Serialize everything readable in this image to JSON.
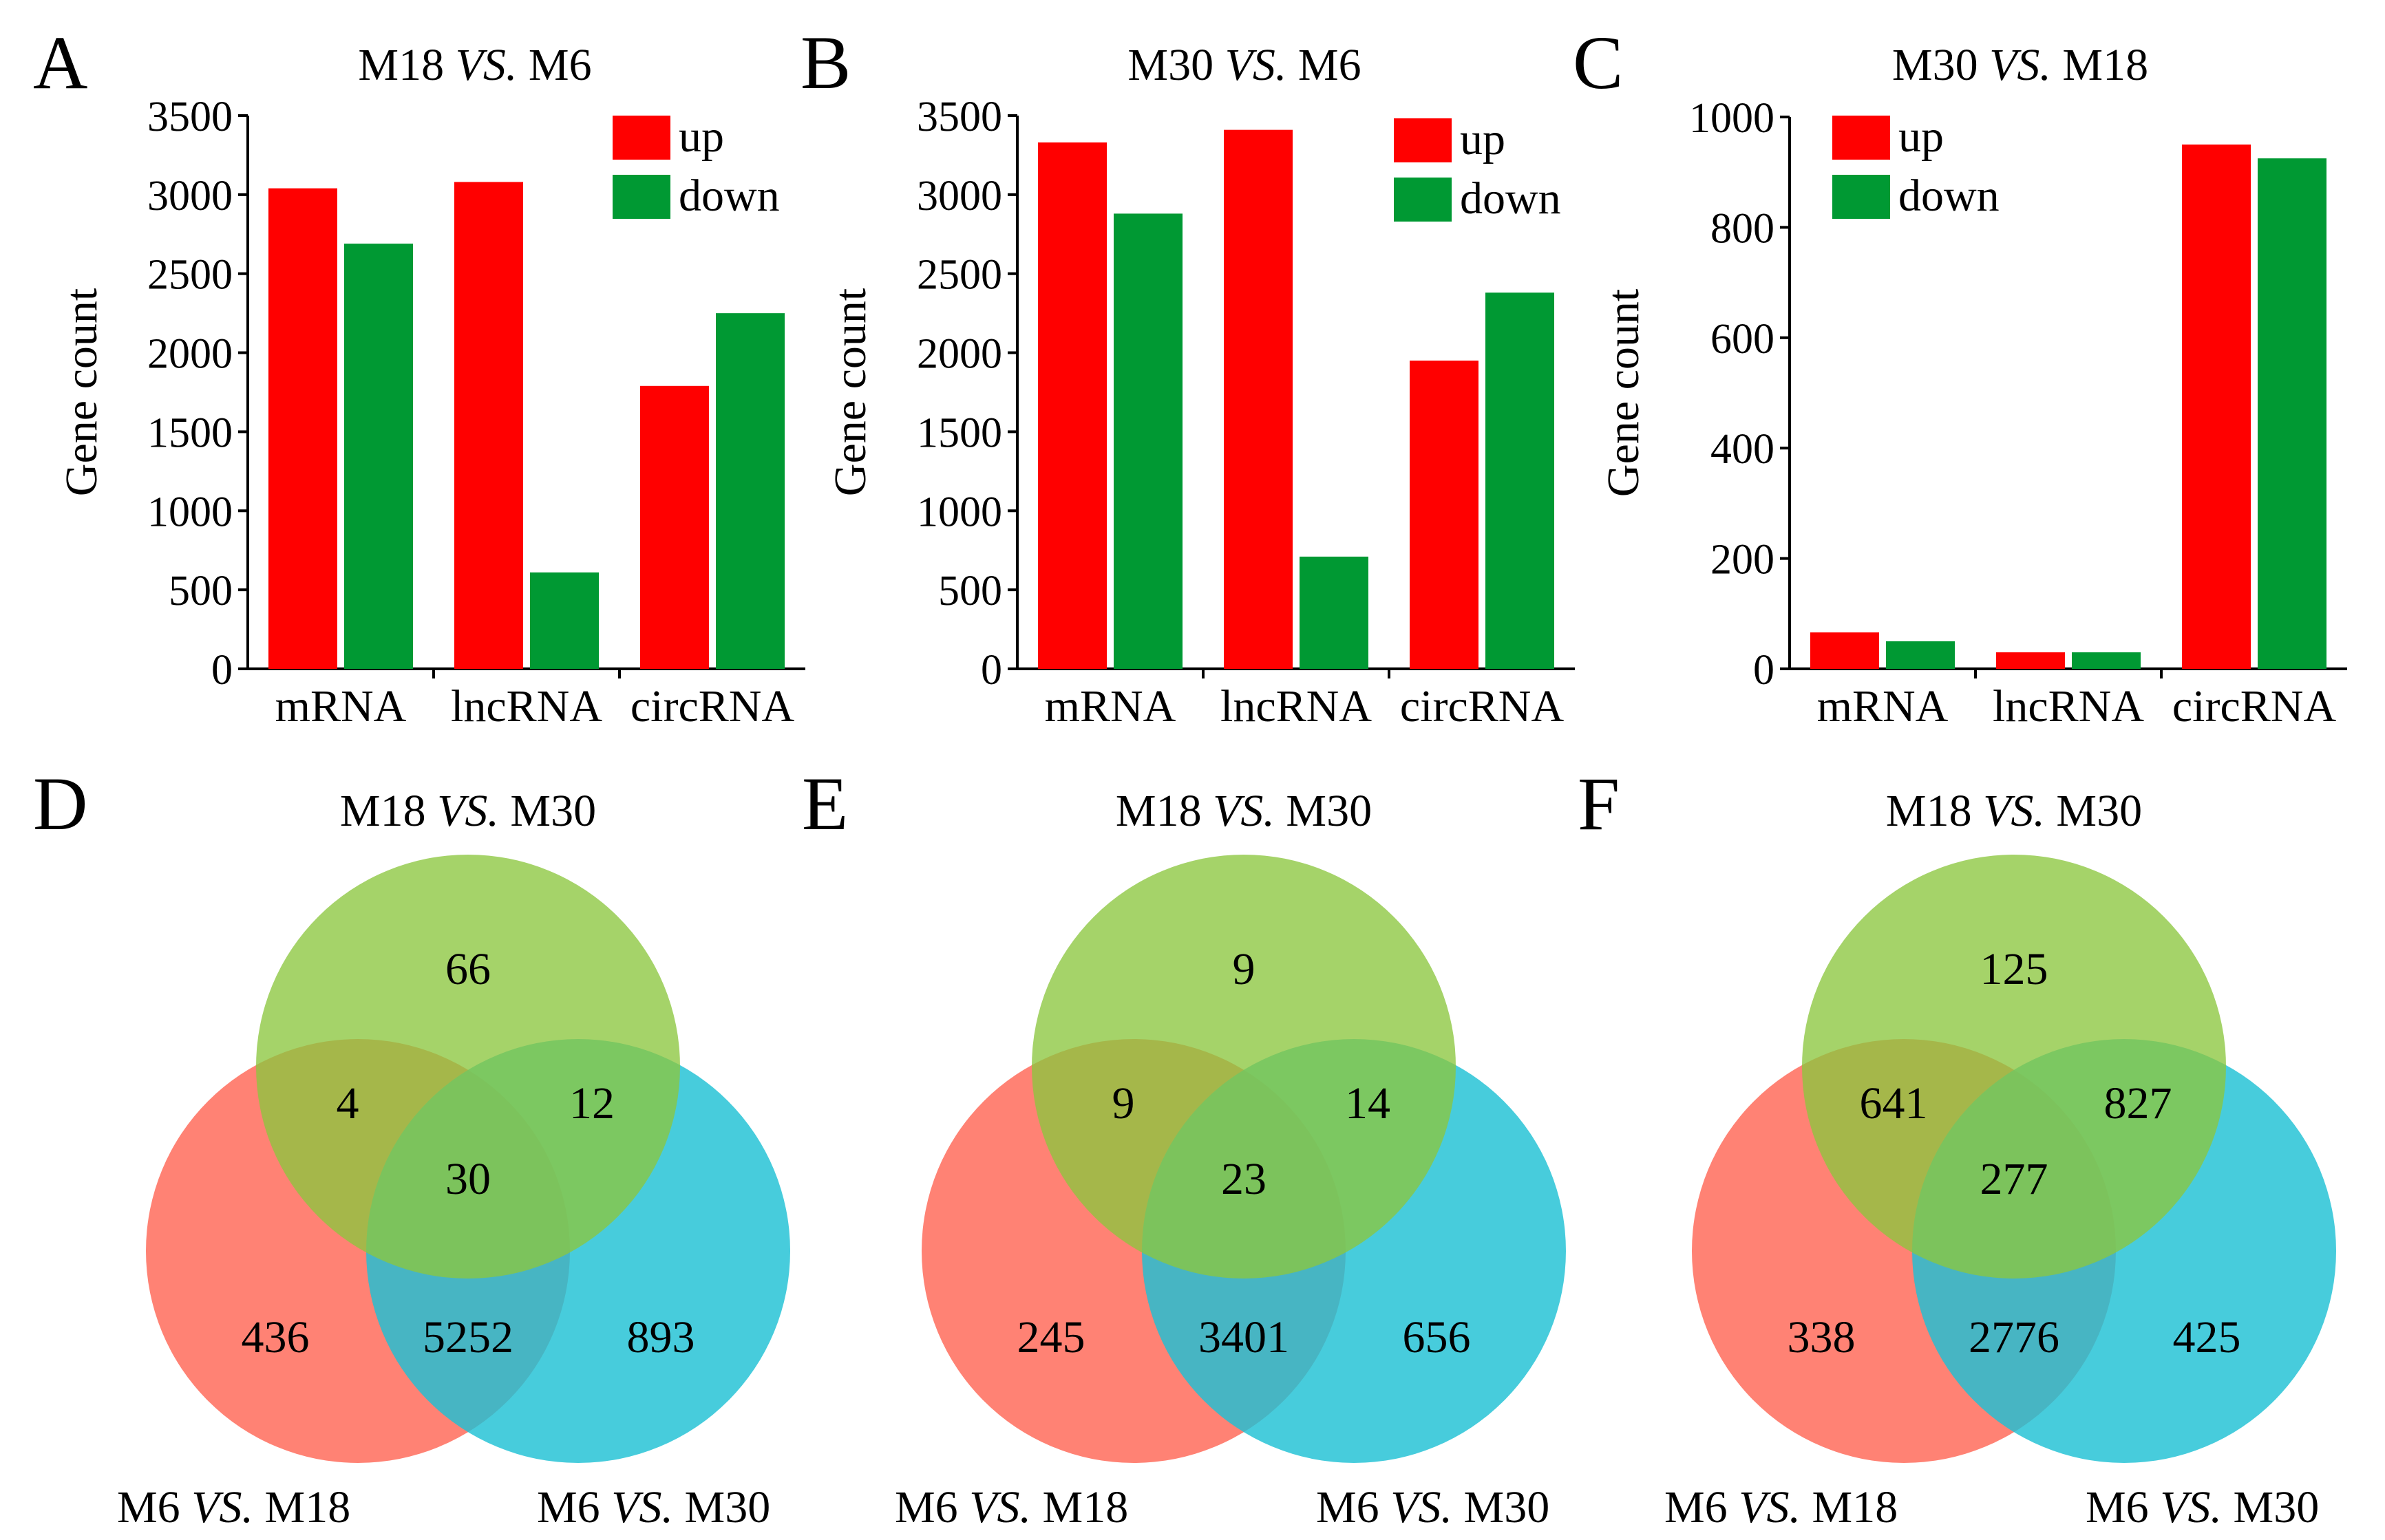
{
  "colors": {
    "up": "#ff0000",
    "down": "#009933"
  },
  "chart_data": [
    {
      "type": "bar",
      "panel_letter": "A",
      "title": {
        "prefix": "M18 ",
        "italic": "VS.",
        "suffix": " M6"
      },
      "ylabel": "Gene count",
      "categories": [
        "mRNA",
        "lncRNA",
        "circRNA"
      ],
      "ylim": [
        0,
        3500
      ],
      "yticks": [
        0,
        500,
        1000,
        1500,
        2000,
        2500,
        3000,
        3500
      ],
      "legend": {
        "placement": "top-right"
      },
      "series": [
        {
          "name": "up",
          "color": "#ff0000",
          "values": [
            3040,
            3080,
            1790
          ]
        },
        {
          "name": "down",
          "color": "#009933",
          "values": [
            2690,
            610,
            2250
          ]
        }
      ]
    },
    {
      "type": "bar",
      "panel_letter": "B",
      "title": {
        "prefix": "M30 ",
        "italic": "VS.",
        "suffix": " M6"
      },
      "ylabel": "Gene count",
      "categories": [
        "mRNA",
        "lncRNA",
        "circRNA"
      ],
      "ylim": [
        0,
        3500
      ],
      "yticks": [
        0,
        500,
        1000,
        1500,
        2000,
        2500,
        3000,
        3500
      ],
      "legend": {
        "placement": "top-right"
      },
      "series": [
        {
          "name": "up",
          "color": "#ff0000",
          "values": [
            3330,
            3410,
            1950
          ]
        },
        {
          "name": "down",
          "color": "#009933",
          "values": [
            2880,
            710,
            2380
          ]
        }
      ]
    },
    {
      "type": "bar",
      "panel_letter": "C",
      "title": {
        "prefix": "M30 ",
        "italic": "VS.",
        "suffix": " M18"
      },
      "ylabel": "Gene count",
      "categories": [
        "mRNA",
        "lncRNA",
        "circRNA"
      ],
      "ylim": [
        0,
        1000
      ],
      "yticks": [
        0,
        200,
        400,
        600,
        800,
        1000
      ],
      "legend": {
        "placement": "top-left"
      },
      "series": [
        {
          "name": "up",
          "color": "#ff0000",
          "values": [
            66,
            30,
            950
          ]
        },
        {
          "name": "down",
          "color": "#009933",
          "values": [
            50,
            30,
            925
          ]
        }
      ]
    }
  ],
  "venns": [
    {
      "panel_letter": "D",
      "labels": {
        "top": {
          "prefix": "M18 ",
          "italic": "VS.",
          "suffix": " M30"
        },
        "left": {
          "prefix": "M6 ",
          "italic": "VS.",
          "suffix": " M18"
        },
        "right": {
          "prefix": "M6 ",
          "italic": "VS.",
          "suffix": " M30"
        }
      },
      "regions": {
        "top_only": "66",
        "top_left": "4",
        "top_right": "12",
        "center": "30",
        "left_only": "436",
        "left_right": "5252",
        "right_only": "893"
      }
    },
    {
      "panel_letter": "E",
      "labels": {
        "top": {
          "prefix": "M18 ",
          "italic": "VS.",
          "suffix": " M30"
        },
        "left": {
          "prefix": "M6 ",
          "italic": "VS.",
          "suffix": " M18"
        },
        "right": {
          "prefix": "M6 ",
          "italic": "VS.",
          "suffix": " M30"
        }
      },
      "regions": {
        "top_only": "9",
        "top_left": "9",
        "top_right": "14",
        "center": "23",
        "left_only": "245",
        "left_right": "3401",
        "right_only": "656"
      }
    },
    {
      "panel_letter": "F",
      "labels": {
        "top": {
          "prefix": "M18 ",
          "italic": "VS.",
          "suffix": " M30"
        },
        "left": {
          "prefix": "M6 ",
          "italic": "VS.",
          "suffix": " M18"
        },
        "right": {
          "prefix": "M6 ",
          "italic": "VS.",
          "suffix": " M30"
        }
      },
      "regions": {
        "top_only": "125",
        "top_left": "641",
        "top_right": "827",
        "center": "277",
        "left_only": "338",
        "left_right": "2776",
        "right_only": "425"
      }
    }
  ],
  "venn_colors": {
    "top": "#8cc63f",
    "left": "#ff6655",
    "right": "#1ec1d4"
  }
}
